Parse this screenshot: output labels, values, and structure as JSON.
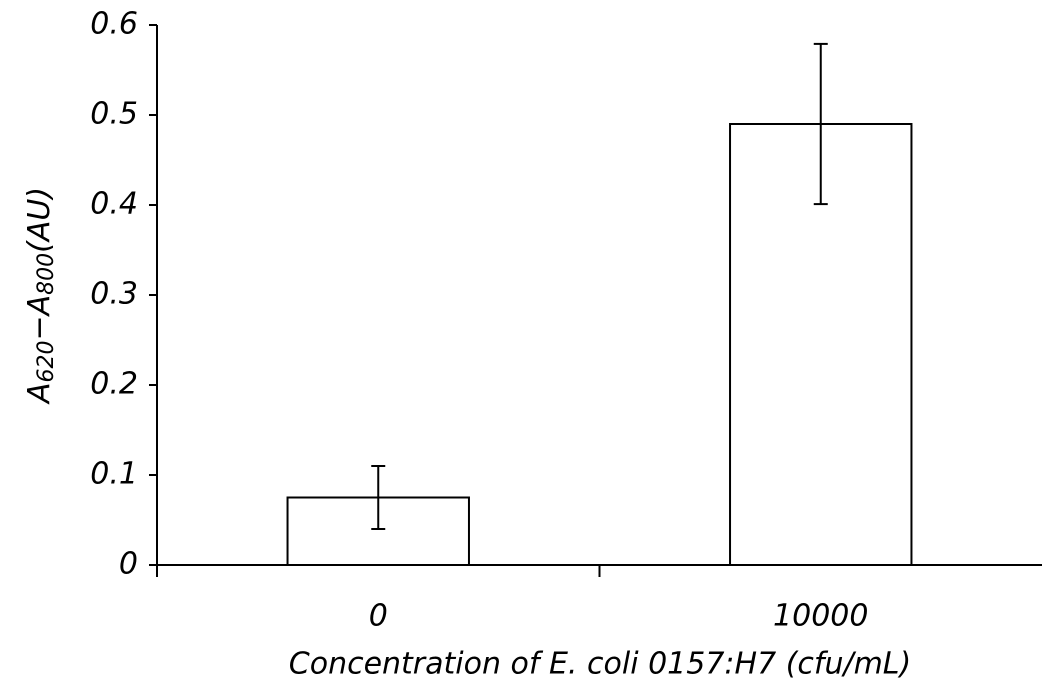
{
  "chart_data": {
    "type": "bar",
    "y_label": [
      "A",
      "620",
      "−A",
      "800",
      "(AU)"
    ],
    "x_label": "Concentration of E. coli 0157:H7 (cfu/mL)",
    "categories": [
      "0",
      "10000"
    ],
    "values": [
      0.075,
      0.49
    ],
    "errors": [
      0.035,
      0.089
    ],
    "color": "#ffffff",
    "ylim": [
      0,
      0.6
    ],
    "yticks": [
      0,
      0.1,
      0.2,
      0.3,
      0.4,
      0.5,
      0.6
    ],
    "grid": false
  }
}
